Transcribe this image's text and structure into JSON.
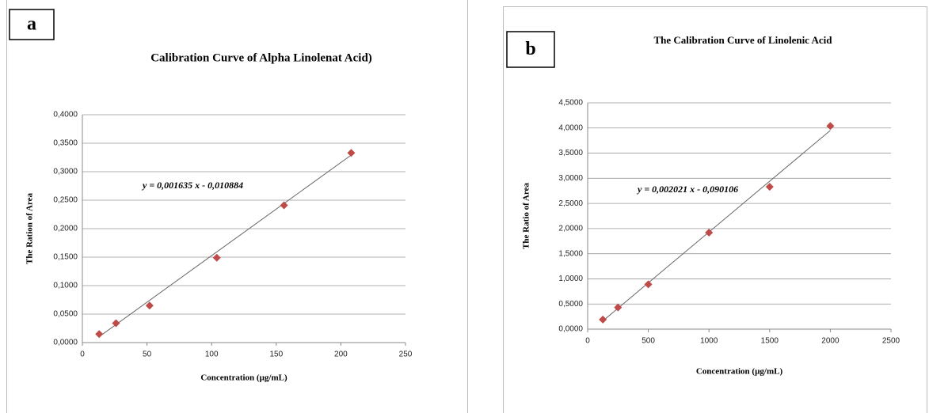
{
  "chart_data": [
    {
      "type": "scatter",
      "panel": "a",
      "title": "Calibration Curve of Alpha Linolenat Acid)",
      "xlabel": "Concentration (µg/mL)",
      "ylabel": "The Ration of Area",
      "x": [
        13,
        26,
        52,
        104,
        156,
        208
      ],
      "values": [
        0.015,
        0.034,
        0.065,
        0.149,
        0.241,
        0.333
      ],
      "color": "#be4b48",
      "trendline": {
        "label": "y = 0,001635 x - 0,010884",
        "slope": 0.001635,
        "intercept": -0.010884
      },
      "xlim": [
        0,
        250
      ],
      "xticks": [
        0,
        50,
        100,
        150,
        200,
        250
      ],
      "ylim": [
        0,
        0.4
      ],
      "yticks": [
        {
          "value": 0,
          "label": "0,0000"
        },
        {
          "value": 0.05,
          "label": "0,0500"
        },
        {
          "value": 0.1,
          "label": "0,1000"
        },
        {
          "value": 0.15,
          "label": "0,1500"
        },
        {
          "value": 0.2,
          "label": "0,2000"
        },
        {
          "value": 0.25,
          "label": "0,2500"
        },
        {
          "value": 0.3,
          "label": "0,3000"
        },
        {
          "value": 0.35,
          "label": "0,3500"
        },
        {
          "value": 0.4,
          "label": "0,4000"
        }
      ],
      "grid": true
    },
    {
      "type": "scatter",
      "panel": "b",
      "title": "The Calibration Curve of Linolenic Acid",
      "xlabel": "Concentration (µg/mL)",
      "ylabel": "The Ratio of Area",
      "x": [
        125,
        250,
        500,
        1000,
        1500,
        2000
      ],
      "values": [
        0.19,
        0.43,
        0.89,
        1.92,
        2.83,
        4.04
      ],
      "color": "#be4b48",
      "trendline": {
        "label": "y = 0,002021 x - 0,090106",
        "slope": 0.002021,
        "intercept": -0.090106
      },
      "xlim": [
        0,
        2500
      ],
      "xticks": [
        0,
        500,
        1000,
        1500,
        2000,
        2500
      ],
      "ylim": [
        0,
        4.5
      ],
      "yticks": [
        {
          "value": 0,
          "label": "0,0000"
        },
        {
          "value": 0.5,
          "label": "0,5000"
        },
        {
          "value": 1,
          "label": "1,0000"
        },
        {
          "value": 1.5,
          "label": "1,5000"
        },
        {
          "value": 2,
          "label": "2,0000"
        },
        {
          "value": 2.5,
          "label": "2,5000"
        },
        {
          "value": 3,
          "label": "3,0000"
        },
        {
          "value": 3.5,
          "label": "3,5000"
        },
        {
          "value": 4,
          "label": "4,0000"
        },
        {
          "value": 4.5,
          "label": "4,5000"
        }
      ],
      "grid": true
    }
  ]
}
